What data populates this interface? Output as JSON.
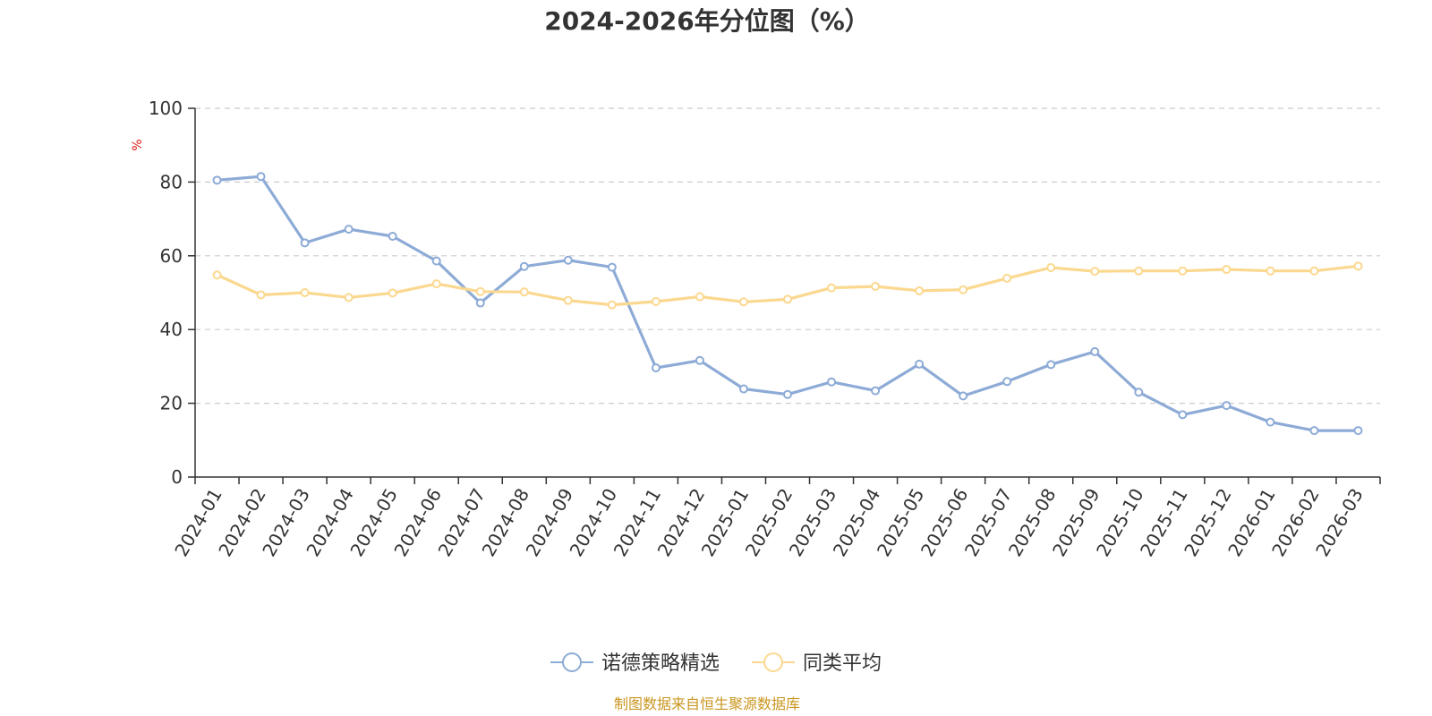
{
  "chart_data": {
    "type": "line",
    "title": "2024-2026年分位图（%）",
    "ylabel": "%",
    "xlabel": "",
    "ylim": [
      0,
      100
    ],
    "yticks": [
      0,
      20,
      40,
      60,
      80,
      100
    ],
    "grid": "horizontal-dashed",
    "legend_placement": "bottom-center",
    "categories": [
      "2024-01",
      "2024-02",
      "2024-03",
      "2024-04",
      "2024-05",
      "2024-06",
      "2024-07",
      "2024-08",
      "2024-09",
      "2024-10",
      "2024-11",
      "2024-12",
      "2025-01",
      "2025-02",
      "2025-03",
      "2025-04",
      "2025-05",
      "2025-06",
      "2025-07",
      "2025-08",
      "2025-09",
      "2025-10",
      "2025-11",
      "2025-12",
      "2026-01",
      "2026-02",
      "2026-03"
    ],
    "series": [
      {
        "name": "诺德策略精选",
        "color": "#8dabd6",
        "values": [
          80.5,
          81.5,
          63.5,
          67.2,
          65.3,
          58.6,
          47.2,
          57.1,
          58.8,
          56.9,
          29.6,
          31.6,
          23.9,
          22.4,
          25.8,
          23.4,
          30.6,
          22.0,
          25.9,
          30.5,
          34.0,
          23.0,
          16.9,
          19.4,
          14.9,
          12.6,
          12.6
        ]
      },
      {
        "name": "同类平均",
        "color": "#fbd88f",
        "values": [
          54.8,
          49.4,
          50.0,
          48.7,
          49.9,
          52.4,
          50.3,
          50.2,
          47.9,
          46.7,
          47.6,
          48.9,
          47.5,
          48.2,
          51.3,
          51.7,
          50.5,
          50.8,
          53.9,
          56.8,
          55.8,
          55.9,
          55.9,
          56.3,
          55.9,
          55.9,
          57.2
        ]
      }
    ],
    "source": "制图数据来自恒生聚源数据库"
  }
}
